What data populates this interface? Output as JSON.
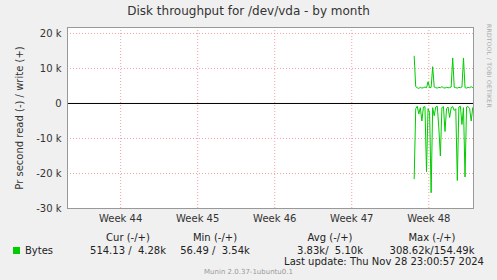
{
  "chart_data": {
    "type": "line",
    "title": "Disk throughput for /dev/vda - by month",
    "y_label": "Pr second read (-) / write (+)",
    "x": [
      47.81,
      47.83,
      47.85,
      47.87,
      47.89,
      47.91,
      47.93,
      47.95,
      47.97,
      47.99,
      48.01,
      48.03,
      48.05,
      48.07,
      48.09,
      48.11,
      48.13,
      48.15,
      48.17,
      48.19,
      48.21,
      48.23,
      48.25,
      48.27,
      48.29,
      48.31,
      48.33,
      48.35,
      48.37,
      48.39,
      48.41,
      48.43,
      48.45,
      48.47,
      48.49,
      48.51,
      48.53,
      48.55,
      48.57
    ],
    "series": [
      {
        "name": "Bytes",
        "color": "#00cc00",
        "values": [
          13500,
          4800,
          4500,
          4300,
          4600,
          4400,
          4500,
          4700,
          4500,
          6200,
          4500,
          4600,
          10500,
          4700,
          4500,
          4400,
          4600,
          4500,
          4800,
          4500,
          4400,
          4600,
          4500,
          4500,
          4700,
          13000,
          4600,
          4500,
          4400,
          4600,
          4500,
          4700,
          13000,
          4500,
          4400,
          4600,
          4500,
          4800,
          4500
        ],
        "read_values": [
          -21500,
          -1500,
          -800,
          -3000,
          -1200,
          -5000,
          -1000,
          -900,
          -19500,
          -1500,
          -2500,
          -25500,
          -1200,
          -3500,
          -1000,
          -800,
          -7000,
          -15000,
          -1200,
          -900,
          -8000,
          -1500,
          -1000,
          -4000,
          -1200,
          -900,
          -2000,
          -1500,
          -22000,
          -1000,
          -800,
          -6000,
          -1200,
          -21000,
          -1000,
          -900,
          -1500,
          -5000,
          -1200
        ],
        "stats": [
          "514.13 /  4.28k",
          "56.49 /  3.54k",
          "3.83k/  5.10k",
          "308.62k/154.49k"
        ]
      }
    ],
    "stats_columns": [
      "Cur (-/+)",
      "Min (-/+)",
      "Avg (-/+)",
      "Max (-/+)"
    ],
    "xlim": [
      43.31,
      48.58
    ],
    "xticks": [
      {
        "value": 44,
        "label": "Week 44"
      },
      {
        "value": 45,
        "label": "Week 45"
      },
      {
        "value": 46,
        "label": "Week 46"
      },
      {
        "value": 47,
        "label": "Week 47"
      },
      {
        "value": 48,
        "label": "Week 48"
      }
    ],
    "ylim": [
      -30000,
      21700
    ],
    "yticks": [
      {
        "value": -30000,
        "label": "-30 k"
      },
      {
        "value": -20000,
        "label": "-20 k"
      },
      {
        "value": -10000,
        "label": "-10 k"
      },
      0,
      {
        "value": 10000,
        "label": "10 k"
      },
      {
        "value": 20000,
        "label": "20 k"
      }
    ],
    "grid": true,
    "last_update": "Last update: Thu Nov 28 23:00:57 2024",
    "footer": "Munin 2.0.37-1ubuntu0.1",
    "watermark": "RRDTOOL / TOBI OETIKER"
  }
}
